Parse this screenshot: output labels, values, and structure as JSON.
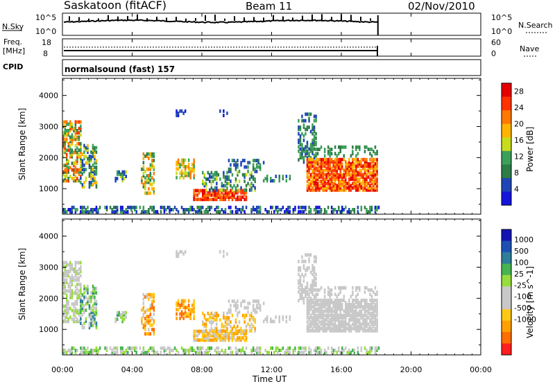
{
  "header": {
    "station": "Saskatoon (fitACF)",
    "beam": "Beam 11",
    "date": "02/Nov/2010"
  },
  "strip_nsky": {
    "left_label": "N.Sky",
    "left_ticks": [
      "10^5",
      "10^0"
    ],
    "right_label": "N.Search",
    "right_ticks": [
      "10^5",
      "10^0"
    ]
  },
  "strip_freq": {
    "left_label_1": "Freq.",
    "left_label_2": "[MHz]",
    "left_ticks": [
      "18",
      "8"
    ],
    "right_label": "Nave",
    "right_ticks": [
      "60",
      "0"
    ]
  },
  "cpid": {
    "label": "CPID",
    "value": "normalsound (fast) 157"
  },
  "colors": {
    "power": [
      "#1414dc",
      "#1e46b4",
      "#2d7d46",
      "#3ca05a",
      "#c8dc1e",
      "#ffb400",
      "#ff7800",
      "#ff3200",
      "#e60000"
    ],
    "velocity": [
      "#ff1e1e",
      "#ff6e00",
      "#ffa000",
      "#ffc814",
      "#c8c8c8",
      "#c8c8c8",
      "#96dc3c",
      "#46b450",
      "#2d7d9b",
      "#1e50b4",
      "#1414b4"
    ]
  },
  "chart_data": [
    {
      "type": "heatmap",
      "name": "power",
      "xlabel": "",
      "ylabel": "Slant Range [km]",
      "x_ticks": [
        "00:00",
        "04:00",
        "08:00",
        "12:00",
        "16:00",
        "20:00",
        "00:00"
      ],
      "xlim": [
        0,
        24
      ],
      "y_ticks": [
        1000,
        2000,
        3000,
        4000
      ],
      "ylim": [
        180,
        4550
      ],
      "colorbar_label": "Power [dB]",
      "colorbar_ticks": [
        4,
        8,
        12,
        16,
        20,
        24,
        28
      ],
      "colorbar_range": [
        0,
        30
      ],
      "data_end_hour": 18.1
    },
    {
      "type": "heatmap",
      "name": "velocity",
      "xlabel": "Time UT",
      "ylabel": "Slant Range [km]",
      "x_ticks": [
        "00:00",
        "04:00",
        "08:00",
        "12:00",
        "16:00",
        "20:00",
        "00:00"
      ],
      "xlim": [
        0,
        24
      ],
      "y_ticks": [
        1000,
        2000,
        3000,
        4000
      ],
      "ylim": [
        180,
        4550
      ],
      "colorbar_label": "Velocity [m s^-1]",
      "colorbar_ticks": [
        1000,
        500,
        100,
        25,
        -25,
        -100,
        -500,
        -1000
      ],
      "data_end_hour": 18.1
    }
  ]
}
